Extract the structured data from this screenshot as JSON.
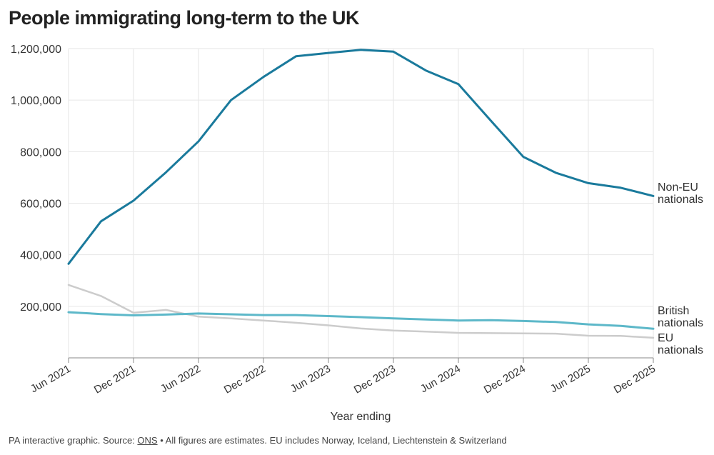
{
  "title": "People immigrating long-term to the UK",
  "footer": {
    "prefix": "PA interactive graphic. Source: ",
    "source_link": "ONS",
    "suffix": " • All figures are estimates. EU includes Norway, Iceland, Liechtenstein & Switzerland"
  },
  "colors": {
    "non_eu": "#1a7a9c",
    "british": "#5db8c9",
    "eu": "#cccccc",
    "grid": "#e6e6e6",
    "axis": "#888888"
  },
  "chart_data": {
    "type": "line",
    "title": "People immigrating long-term to the UK",
    "xlabel": "Year ending",
    "ylabel": "",
    "ylim": [
      0,
      1200000
    ],
    "yticks": [
      200000,
      400000,
      600000,
      800000,
      1000000,
      1200000
    ],
    "ytick_labels": [
      "200,000",
      "400,000",
      "600,000",
      "800,000",
      "1,000,000",
      "1,200,000"
    ],
    "x": [
      "Jun 2021",
      "Sep 2021",
      "Dec 2021",
      "Mar 2022",
      "Jun 2022",
      "Sep 2022",
      "Dec 2022",
      "Mar 2023",
      "Jun 2023",
      "Sep 2023",
      "Dec 2023",
      "Mar 2024",
      "Jun 2024",
      "Sep 2024",
      "Dec 2024",
      "Mar 2025",
      "Jun 2025",
      "Sep 2025",
      "Dec 2025"
    ],
    "xtick_labels": [
      "Jun 2021",
      "Dec 2021",
      "Jun 2022",
      "Dec 2022",
      "Jun 2023",
      "Dec 2023",
      "Jun 2024",
      "Dec 2024",
      "Jun 2025",
      "Dec 2025"
    ],
    "grid": true,
    "series": [
      {
        "name": "Non-EU nationals",
        "label_lines": [
          "Non-EU",
          "nationals"
        ],
        "values": [
          365000,
          530000,
          610000,
          720000,
          840000,
          1000000,
          1090000,
          1170000,
          1183000,
          1195000,
          1188000,
          1115000,
          1062000,
          920000,
          780000,
          718000,
          678000,
          660000,
          628000
        ]
      },
      {
        "name": "British nationals",
        "label_lines": [
          "British",
          "nationals"
        ],
        "values": [
          177000,
          170000,
          165000,
          168000,
          172000,
          169000,
          166000,
          166000,
          162000,
          158000,
          153000,
          149000,
          145000,
          146000,
          143000,
          139000,
          130000,
          124000,
          113000
        ]
      },
      {
        "name": "EU nationals",
        "label_lines": [
          "EU",
          "nationals"
        ],
        "values": [
          283000,
          240000,
          175000,
          186000,
          160000,
          153000,
          145000,
          136000,
          126000,
          114000,
          106000,
          102000,
          97000,
          96000,
          95000,
          94000,
          86000,
          85000,
          78000
        ]
      }
    ]
  }
}
